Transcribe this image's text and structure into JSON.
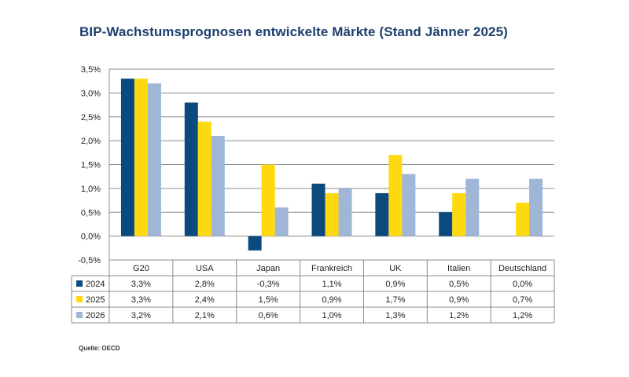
{
  "title": "BIP-Wachstumsprognosen entwickelte Märkte (Stand Jänner 2025)",
  "source": "Quelle: OECD",
  "chart_data": {
    "type": "bar",
    "title": "BIP-Wachstumsprognosen entwickelte Märkte (Stand Jänner 2025)",
    "categories": [
      "G20",
      "USA",
      "Japan",
      "Frankreich",
      "UK",
      "Italien",
      "Deutschland"
    ],
    "series": [
      {
        "name": "2024",
        "color": "#0b4a7f",
        "values": [
          3.3,
          2.8,
          -0.3,
          1.1,
          0.9,
          0.5,
          0.0
        ],
        "labels": [
          "3,3%",
          "2,8%",
          "-0,3%",
          "1,1%",
          "0,9%",
          "0,5%",
          "0,0%"
        ]
      },
      {
        "name": "2025",
        "color": "#ffd90f",
        "values": [
          3.3,
          2.4,
          1.5,
          0.9,
          1.7,
          0.9,
          0.7
        ],
        "labels": [
          "3,3%",
          "2,4%",
          "1,5%",
          "0,9%",
          "1,7%",
          "0,9%",
          "0,7%"
        ]
      },
      {
        "name": "2026",
        "color": "#9fb6d6",
        "values": [
          3.2,
          2.1,
          0.6,
          1.0,
          1.3,
          1.2,
          1.2
        ],
        "labels": [
          "3,2%",
          "2,1%",
          "0,6%",
          "1,0%",
          "1,3%",
          "1,2%",
          "1,2%"
        ]
      }
    ],
    "ylim": [
      -0.5,
      3.5
    ],
    "yticks": [
      -0.5,
      0.0,
      0.5,
      1.0,
      1.5,
      2.0,
      2.5,
      3.0,
      3.5
    ],
    "ytick_labels": [
      "-0,5%",
      "0,0%",
      "0,5%",
      "1,0%",
      "1,5%",
      "2,0%",
      "2,5%",
      "3,0%",
      "3,5%"
    ],
    "grid": true,
    "legend": "data table"
  }
}
